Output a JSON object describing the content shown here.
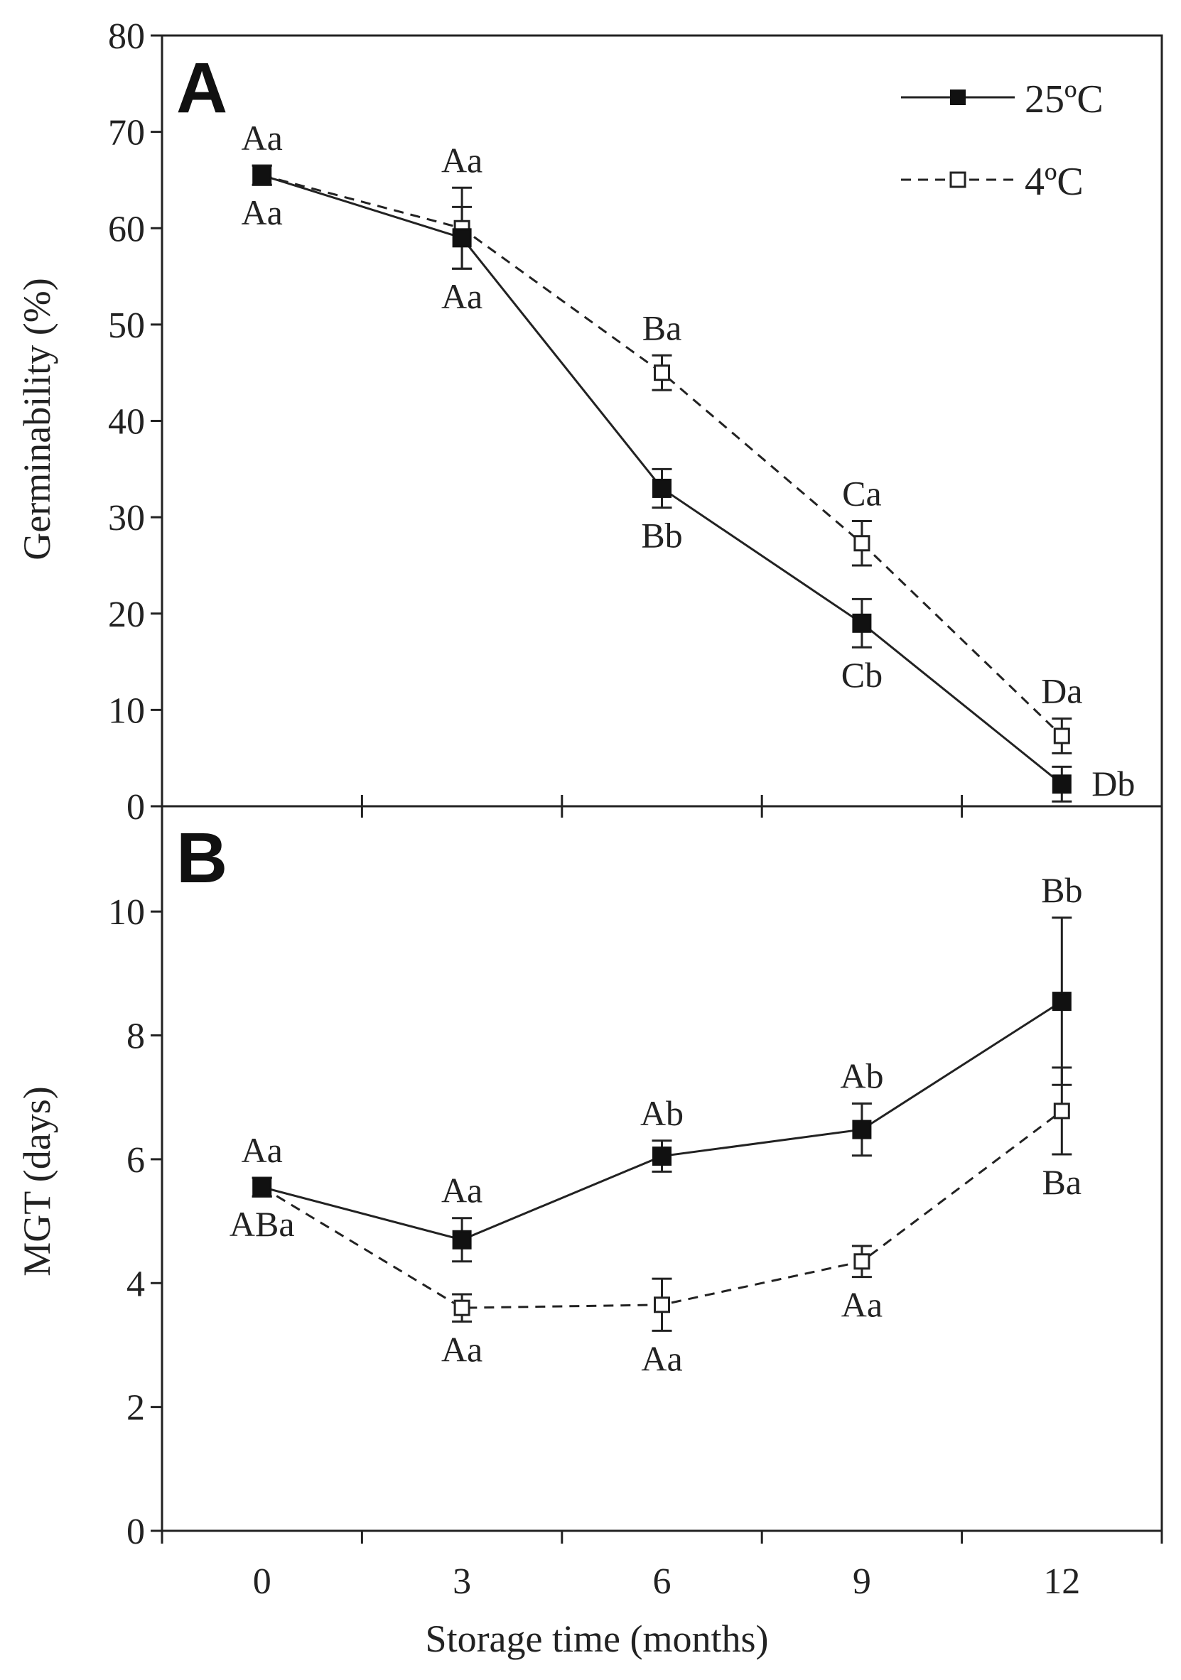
{
  "chart_data": [
    {
      "panel": "A",
      "type": "line",
      "ylabel": "Germinability (%)",
      "xlabel": "",
      "ylim": [
        0,
        80
      ],
      "yticks": [
        0,
        10,
        20,
        30,
        40,
        50,
        60,
        70,
        80
      ],
      "x": [
        0,
        3,
        6,
        9,
        12
      ],
      "series": [
        {
          "name": "25ºC",
          "marker": "filled-square",
          "line": "solid",
          "values": [
            65.5,
            59.0,
            33.0,
            19.0,
            2.3
          ],
          "errors": [
            1.0,
            3.2,
            2.0,
            2.5,
            1.8
          ],
          "annotations": [
            "Aa",
            "Aa",
            "Bb",
            "Cb",
            "Db"
          ]
        },
        {
          "name": "4ºC",
          "marker": "open-square",
          "line": "dashed",
          "values": [
            65.5,
            60.0,
            45.0,
            27.3,
            7.3
          ],
          "errors": [
            1.0,
            4.2,
            1.8,
            2.3,
            1.8
          ],
          "annotations": [
            "Aa",
            "Aa",
            "Ba",
            "Ca",
            "Da"
          ]
        }
      ],
      "legend": "top-right"
    },
    {
      "panel": "B",
      "type": "line",
      "ylabel": "MGT (days)",
      "xlabel": "Storage time (months)",
      "ylim": [
        0,
        11.7
      ],
      "yticks": [
        0,
        2,
        4,
        6,
        8,
        10
      ],
      "x": [
        0,
        3,
        6,
        9,
        12
      ],
      "xticklabels": [
        "0",
        "3",
        "6",
        "9",
        "12"
      ],
      "series": [
        {
          "name": "25ºC",
          "marker": "filled-square",
          "line": "solid",
          "values": [
            5.55,
            4.7,
            6.05,
            6.48,
            8.55
          ],
          "errors": [
            0.15,
            0.35,
            0.25,
            0.42,
            1.35
          ],
          "annotations": [
            "Aa",
            "Aa",
            "Ab",
            "Ab",
            "Bb"
          ]
        },
        {
          "name": "4ºC",
          "marker": "open-square",
          "line": "dashed",
          "values": [
            5.55,
            3.6,
            3.65,
            4.35,
            6.78
          ],
          "errors": [
            0.15,
            0.22,
            0.42,
            0.25,
            0.7
          ],
          "annotations": [
            "ABa",
            "Aa",
            "Aa",
            "Aa",
            "Ba"
          ]
        }
      ]
    }
  ],
  "colors": {
    "ink": "#222222",
    "background": "#ffffff"
  }
}
